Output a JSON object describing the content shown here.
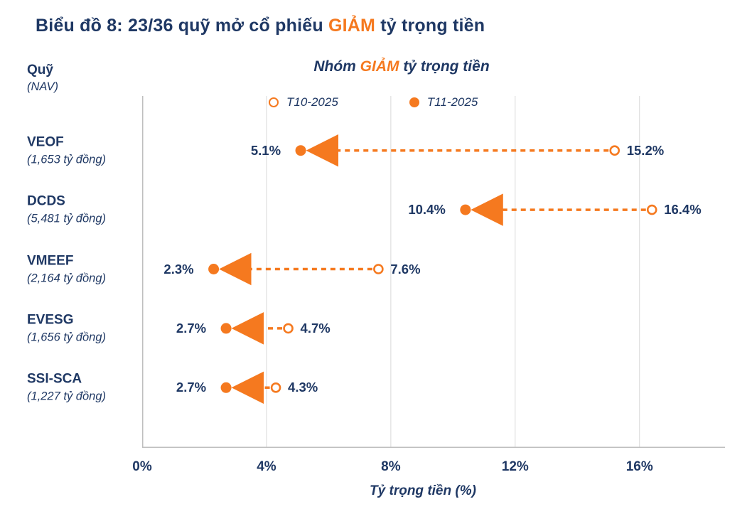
{
  "title": {
    "prefix": "Biểu đồ 8: 23/36 quỹ mở cổ phiếu ",
    "highlight": "GIẢM",
    "suffix": " tỷ trọng tiền"
  },
  "subtitle": {
    "prefix": "Nhóm ",
    "highlight": "GIẢM",
    "suffix": " tỷ trọng tiền"
  },
  "y_axis": {
    "line1": "Quỹ",
    "line2": "(NAV)"
  },
  "colors": {
    "navy": "#1F3864",
    "orange": "#F5791F",
    "grid": "#D9D9D9",
    "axis": "#BFBFBF"
  },
  "chart_data": {
    "type": "scatter",
    "subtype": "dumbbell-dot-plot",
    "title": "Nhóm GIẢM tỷ trọng tiền",
    "xlabel": "Tỷ trọng tiền (%)",
    "ylabel": "Quỹ (NAV)",
    "xlim": [
      0,
      18.75
    ],
    "grid": "vertical",
    "legend_position": "top",
    "series": [
      {
        "name": "T10-2025",
        "marker": "open"
      },
      {
        "name": "T11-2025",
        "marker": "filled"
      }
    ],
    "x_ticks": [
      {
        "value": 0,
        "label": "0%"
      },
      {
        "value": 4,
        "label": "4%"
      },
      {
        "value": 8,
        "label": "8%"
      },
      {
        "value": 12,
        "label": "12%"
      },
      {
        "value": 16,
        "label": "16%"
      }
    ],
    "funds": [
      {
        "name": "VEOF",
        "nav": "(1,653 tỷ đồng)",
        "t10": 15.2,
        "t11": 5.1,
        "t10_label": "15.2%",
        "t11_label": "5.1%"
      },
      {
        "name": "DCDS",
        "nav": "(5,481 tỷ đồng)",
        "t10": 16.4,
        "t11": 10.4,
        "t10_label": "16.4%",
        "t11_label": "10.4%"
      },
      {
        "name": "VMEEF",
        "nav": "(2,164 tỷ đồng)",
        "t10": 7.6,
        "t11": 2.3,
        "t10_label": "7.6%",
        "t11_label": "2.3%"
      },
      {
        "name": "EVESG",
        "nav": "(1,656 tỷ đồng)",
        "t10": 4.7,
        "t11": 2.7,
        "t10_label": "4.7%",
        "t11_label": "2.7%"
      },
      {
        "name": "SSI-SCA",
        "nav": "(1,227 tỷ đồng)",
        "t10": 4.3,
        "t11": 2.7,
        "t10_label": "4.3%",
        "t11_label": "2.7%"
      }
    ]
  }
}
